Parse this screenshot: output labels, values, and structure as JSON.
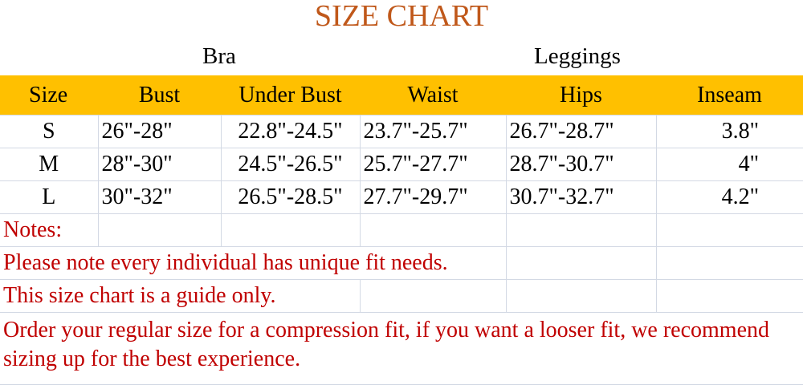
{
  "title": "SIZE CHART",
  "groups": {
    "bra": "Bra",
    "leggings": "Leggings"
  },
  "colors": {
    "title": "#c0581a",
    "header_bg": "#ffc000",
    "notes_text": "#c00000"
  },
  "headers": [
    "Size",
    "Bust",
    "Under Bust",
    "Waist",
    "Hips",
    "Inseam"
  ],
  "rows": [
    [
      "S",
      "26\"-28\"",
      "22.8\"-24.5\"",
      "23.7\"-25.7\"",
      "26.7\"-28.7\"",
      "3.8\""
    ],
    [
      "M",
      "28\"-30\"",
      "24.5\"-26.5\"",
      "25.7\"-27.7\"",
      "28.7\"-30.7\"",
      "4\""
    ],
    [
      "L",
      "30\"-32\"",
      "26.5\"-28.5\"",
      "27.7\"-29.7\"",
      "30.7\"-32.7\"",
      "4.2\""
    ]
  ],
  "notes": {
    "label": "Notes:",
    "lines": [
      "Please note every individual has unique fit needs.",
      "This size chart is a guide only.",
      "Order your regular size for a compression fit, if you want a looser fit, we recommend sizing up for the best experience."
    ]
  }
}
